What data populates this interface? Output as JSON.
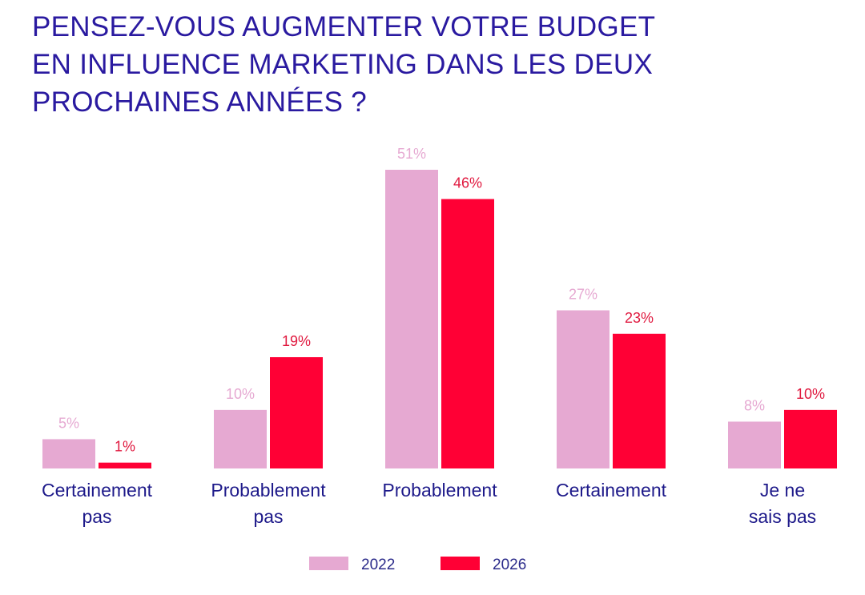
{
  "chart_data": {
    "type": "bar",
    "title_lines": [
      "PENSEZ-VOUS AUGMENTER VOTRE BUDGET",
      "EN INFLUENCE MARKETING DANS LES DEUX",
      "PROCHAINES ANNÉES ?"
    ],
    "categories": [
      [
        "Certainement",
        "pas"
      ],
      [
        "Probablement",
        "pas"
      ],
      [
        "Probablement"
      ],
      [
        "Certainement"
      ],
      [
        "Je ne",
        "sais pas"
      ]
    ],
    "series": [
      {
        "name": "2022",
        "color": "#e6a9d2",
        "label_color": "#e6a9d2",
        "values": [
          5,
          10,
          51,
          27,
          8
        ],
        "labels": [
          "5%",
          "10%",
          "51%",
          "27%",
          "8%"
        ]
      },
      {
        "name": "2026",
        "color": "#ff0035",
        "label_color": "#e0193f",
        "values": [
          1,
          19,
          46,
          23,
          10
        ],
        "labels": [
          "1%",
          "19%",
          "46%",
          "23%",
          "10%"
        ]
      }
    ],
    "legend": [
      "2022",
      "2026"
    ],
    "legend_position": "bottom-center",
    "ylim": [
      0,
      51
    ],
    "xlabel": "",
    "ylabel": "",
    "grid": false
  }
}
